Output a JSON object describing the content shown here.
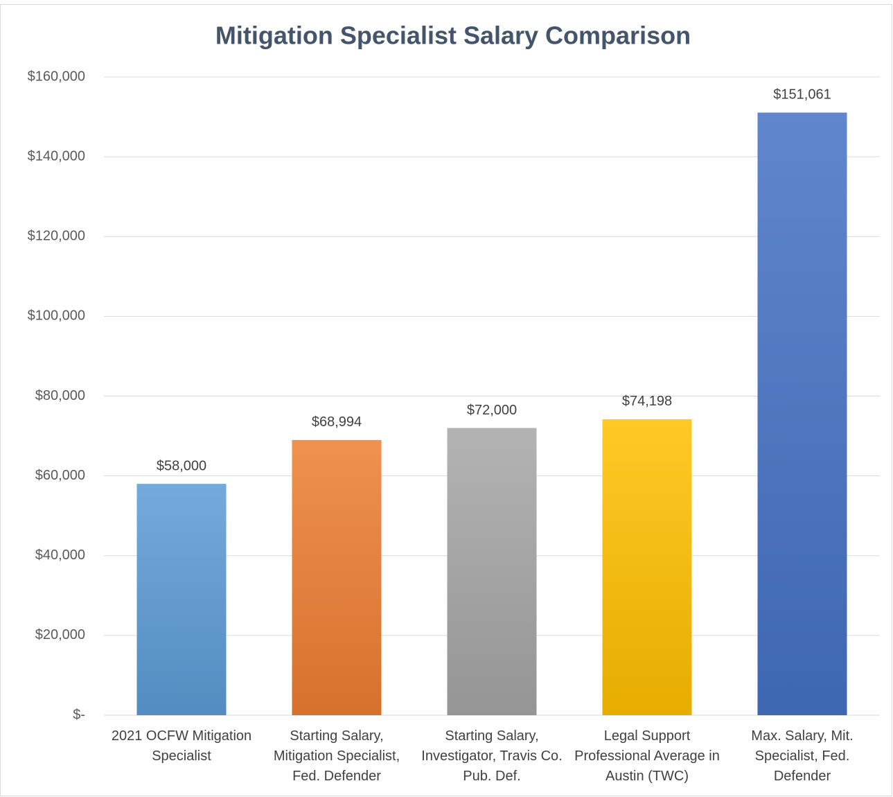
{
  "chart_data": {
    "type": "bar",
    "title": "Mitigation Specialist Salary Comparison",
    "categories": [
      "2021 OCFW Mitigation Specialist",
      "Starting Salary, Mitigation Specialist, Fed. Defender",
      "Starting Salary, Investigator, Travis Co. Pub. Def.",
      "Legal Support Professional Average in Austin (TWC)",
      "Max. Salary, Mit. Specialist, Fed. Defender"
    ],
    "values": [
      58000,
      68994,
      72000,
      74198,
      151061
    ],
    "value_labels": [
      "$58,000",
      "$68,994",
      "$72,000",
      "$74,198",
      "$151,061"
    ],
    "colors": [
      "#5b9bd5",
      "#ed7d31",
      "#a5a5a5",
      "#ffc000",
      "#4472c4"
    ],
    "ylim": [
      0,
      160000
    ],
    "yticks": [
      {
        "value": 0,
        "label": "$-"
      },
      {
        "value": 20000,
        "label": "$20,000"
      },
      {
        "value": 40000,
        "label": "$40,000"
      },
      {
        "value": 60000,
        "label": "$60,000"
      },
      {
        "value": 80000,
        "label": "$80,000"
      },
      {
        "value": 100000,
        "label": "$100,000"
      },
      {
        "value": 120000,
        "label": "$120,000"
      },
      {
        "value": 140000,
        "label": "$140,000"
      },
      {
        "value": 160000,
        "label": "$160,000"
      }
    ],
    "grid": true
  }
}
